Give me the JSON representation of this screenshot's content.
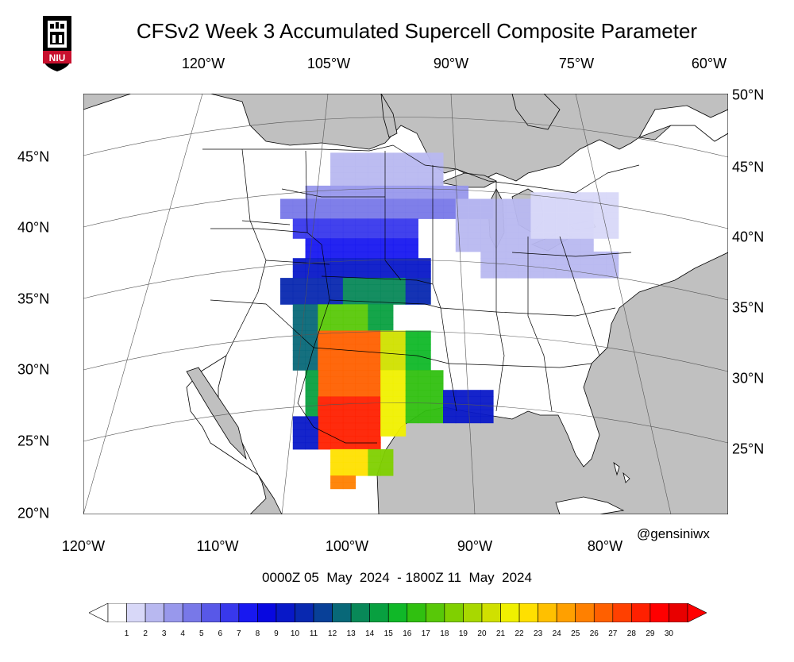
{
  "title": "CFSv2 Week 3 Accumulated Supercell Composite Parameter",
  "logo": {
    "text": "NIU",
    "icon": "niu-logo-icon",
    "color": "#c8102e"
  },
  "credit": "@gensiniwx",
  "date_range": "0000Z 05  May  2024  - 1800Z 11  May  2024",
  "top_lon_labels": [
    "120°W",
    "105°W",
    "90°W",
    "75°W",
    "60°W"
  ],
  "bottom_lon_labels": [
    "120°W",
    "110°W",
    "100°W",
    "90°W",
    "80°W"
  ],
  "left_lat_labels": [
    "45°N",
    "40°N",
    "35°N",
    "30°N",
    "25°N",
    "20°N"
  ],
  "right_lat_labels": [
    "50°N",
    "45°N",
    "40°N",
    "35°N",
    "30°N",
    "25°N"
  ],
  "colorbar": {
    "labels": [
      "1",
      "2",
      "3",
      "4",
      "5",
      "6",
      "7",
      "8",
      "9",
      "10",
      "11",
      "12",
      "13",
      "14",
      "15",
      "16",
      "17",
      "18",
      "19",
      "20",
      "21",
      "22",
      "23",
      "24",
      "25",
      "26",
      "27",
      "28",
      "29",
      "30"
    ],
    "colors": [
      "#ffffff",
      "#d8d8f8",
      "#b8b8f0",
      "#9898ec",
      "#7878e8",
      "#5858e8",
      "#3838ec",
      "#1818f0",
      "#0808e0",
      "#0818c8",
      "#0828b0",
      "#084098",
      "#086878",
      "#088858",
      "#08a040",
      "#10b828",
      "#30c010",
      "#58c808",
      "#80d000",
      "#a8d800",
      "#d0e000",
      "#f0f000",
      "#ffe000",
      "#ffc000",
      "#ffa000",
      "#ff8000",
      "#ff6000",
      "#ff4000",
      "#ff2000",
      "#ff0000",
      "#e80000"
    ],
    "over_color": "#ff0000",
    "under_color": "#ffffff"
  },
  "map": {
    "land_color": "#ffffff",
    "outside_color": "#c0c0c0",
    "water_color": "#c0c0c0"
  }
}
